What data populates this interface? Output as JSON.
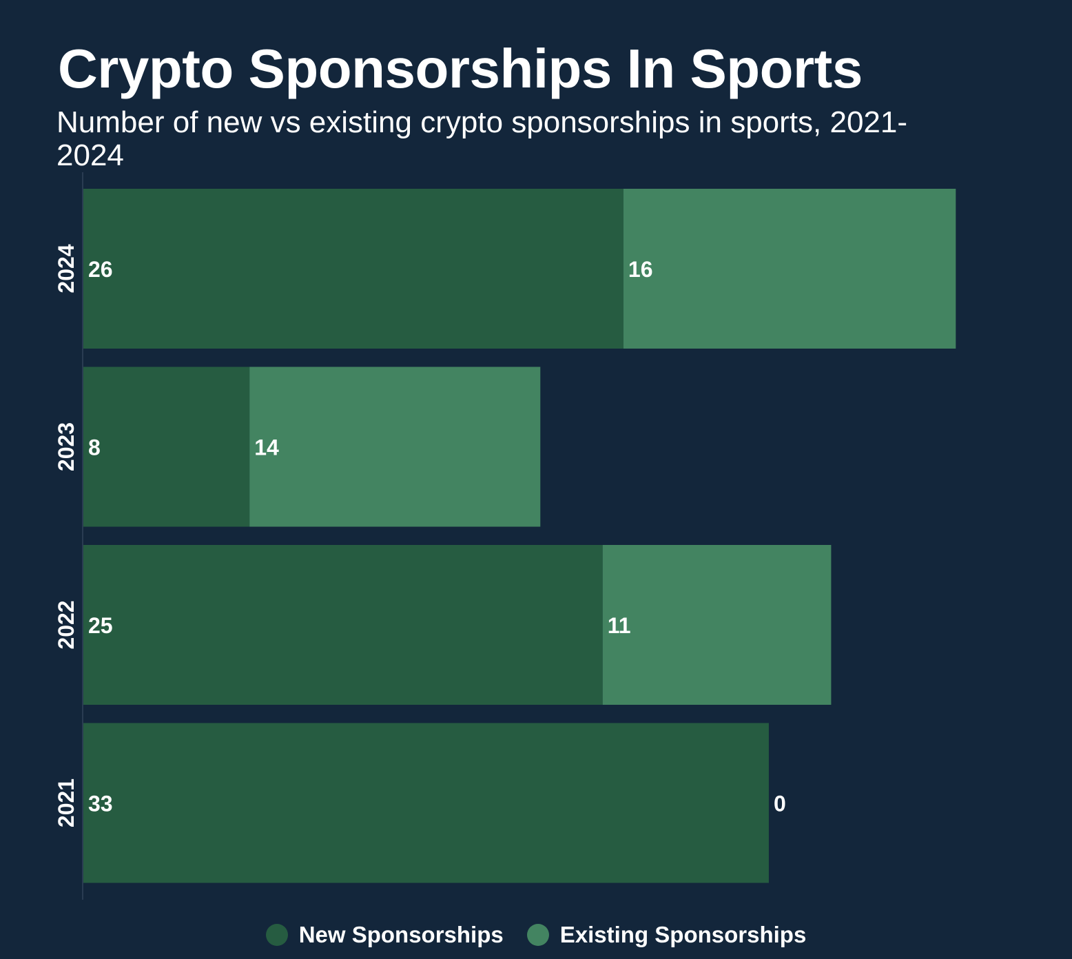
{
  "chart_data": {
    "type": "bar",
    "orientation": "horizontal",
    "stacked": true,
    "title": "Crypto Sponsorships In Sports",
    "subtitle": "Number of new vs existing crypto sponsorships in sports, 2021-2024",
    "categories": [
      "2024",
      "2023",
      "2022",
      "2021"
    ],
    "series": [
      {
        "name": "New Sponsorships",
        "values": [
          26,
          8,
          25,
          33
        ],
        "color": "#265c41"
      },
      {
        "name": "Existing Sponsorships",
        "values": [
          16,
          14,
          11,
          0
        ],
        "color": "#438461"
      }
    ],
    "xlim": [
      0,
      42
    ],
    "grid": false,
    "legend_position": "bottom",
    "background": "#13263b",
    "label_color": "#ffffff"
  }
}
